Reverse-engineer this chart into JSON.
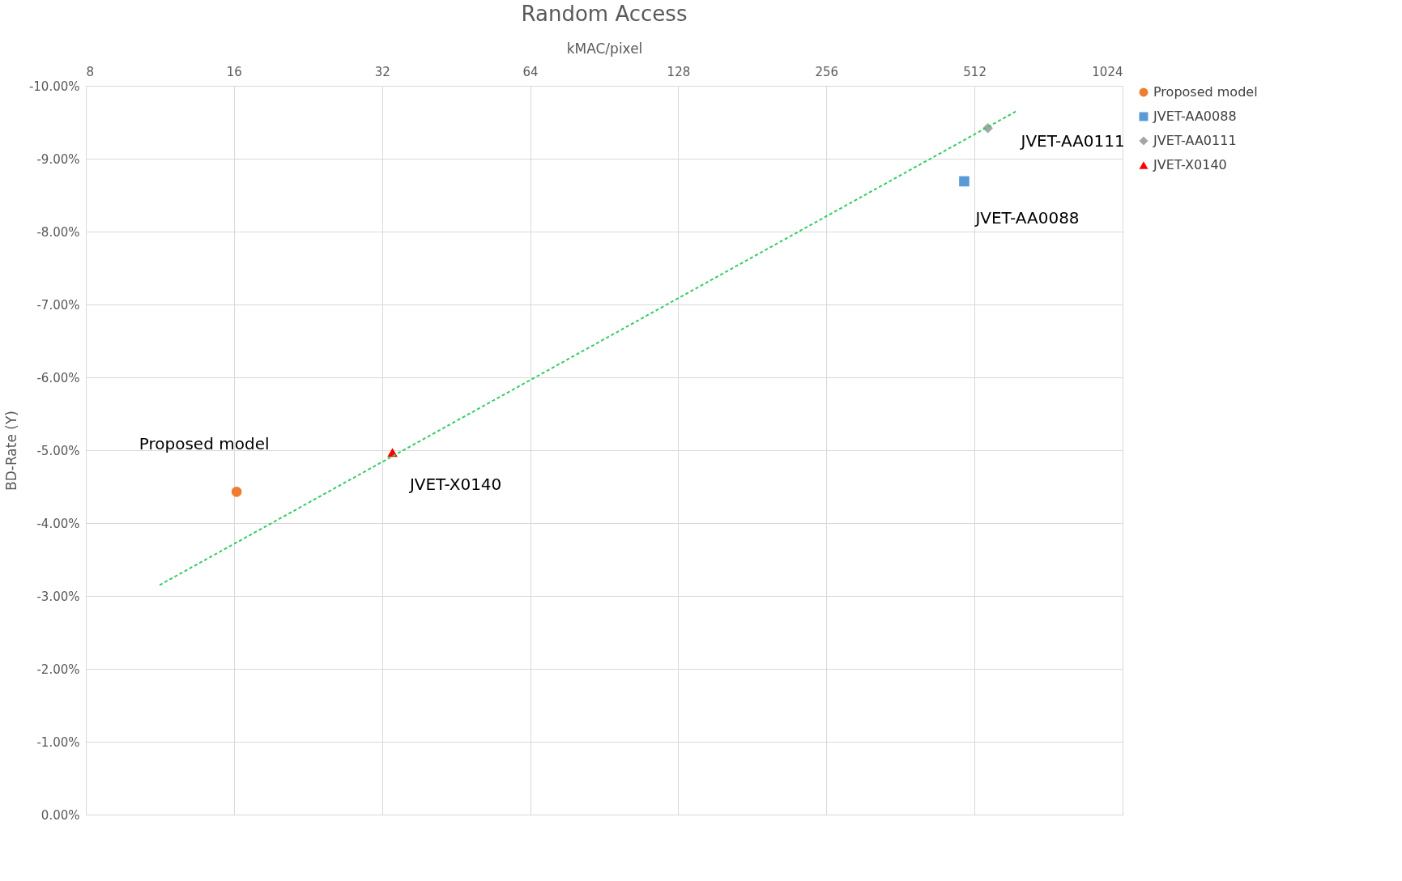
{
  "chart_data": {
    "type": "scatter",
    "title": "Random Access",
    "xlabel": "kMAC/pixel",
    "ylabel": "BD-Rate (Y)",
    "log": "x",
    "xlim": [
      8,
      1024
    ],
    "xticks": [
      8,
      16,
      32,
      64,
      128,
      256,
      512,
      1024
    ],
    "ylim": [
      0,
      -10
    ],
    "yticks": [
      {
        "value": 0,
        "label": "0.00%"
      },
      {
        "value": -1,
        "label": "-1.00%"
      },
      {
        "value": -2,
        "label": "-2.00%"
      },
      {
        "value": -3,
        "label": "-3.00%"
      },
      {
        "value": -4,
        "label": "-4.00%"
      },
      {
        "value": -5,
        "label": "-5.00%"
      },
      {
        "value": -6,
        "label": "-6.00%"
      },
      {
        "value": -7,
        "label": "-7.00%"
      },
      {
        "value": -8,
        "label": "-8.00%"
      },
      {
        "value": -9,
        "label": "-9.00%"
      },
      {
        "value": -10,
        "label": "-10.00%"
      }
    ],
    "grid": true,
    "legend": "right",
    "series": [
      {
        "name": "Proposed model",
        "color": "#ed7d31",
        "marker": "circle",
        "x": [
          16.2
        ],
        "values": [
          -4.43
        ]
      },
      {
        "name": "JVET-AA0088",
        "color": "#5b9bd5",
        "marker": "square",
        "x": [
          488
        ],
        "values": [
          -8.69
        ]
      },
      {
        "name": "JVET-AA0111",
        "color": "#a5a5a5",
        "marker": "diamond",
        "x": [
          545
        ],
        "values": [
          -9.42
        ]
      },
      {
        "name": "JVET-X0140",
        "color": "#ff0000",
        "marker": "triangle",
        "x": [
          33.6
        ],
        "values": [
          -4.97
        ]
      },
      {
        "type": "line",
        "color": "#33cc66",
        "line_style": "dashed",
        "x": [
          11.3,
          626
        ],
        "values": [
          -3.15,
          -9.66
        ]
      }
    ],
    "annotations": [
      {
        "text": "Proposed model",
        "x": 16.2,
        "y": -4.43
      },
      {
        "text": "JVET-X0140",
        "x": 33.6,
        "y": -4.97
      },
      {
        "text": "JVET-AA0088",
        "x": 488,
        "y": -8.69
      },
      {
        "text": "JVET-AA0111",
        "x": 545,
        "y": -9.42
      }
    ]
  }
}
